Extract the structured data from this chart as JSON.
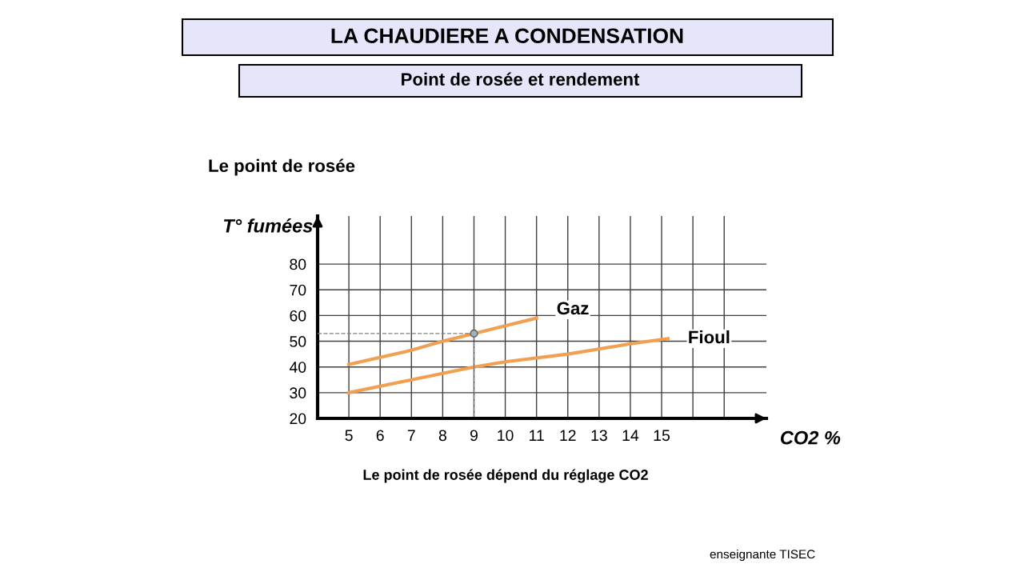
{
  "chart_data": {
    "type": "line",
    "title": "LA CHAUDIERE A CONDENSATION",
    "subtitle": "Point de rosée et rendement",
    "xlabel": "CO2 %",
    "ylabel": "T° fumées",
    "annotations": [
      "Le point de rosée",
      "Le point de rosée dépend du réglage CO2",
      "enseignante TISEC"
    ],
    "xlim": [
      4,
      18.35
    ],
    "ylim": [
      20,
      98.7
    ],
    "xticks": [
      5,
      6,
      7,
      8,
      9,
      10,
      11,
      12,
      13,
      14,
      15,
      {
        "value": 16,
        "label": null
      },
      {
        "value": 17,
        "label": null
      }
    ],
    "yticks": [
      20,
      30,
      40,
      50,
      60,
      70,
      80
    ],
    "grid": true,
    "legend": false,
    "line_style": "solid",
    "marker": "none",
    "series": [
      {
        "name": "Gaz",
        "color": "#f0a050",
        "x": [
          5,
          7,
          8,
          9,
          10,
          11
        ],
        "values": [
          41,
          46.5,
          50,
          53,
          56,
          59
        ]
      },
      {
        "name": "Fioul",
        "color": "#f0a050",
        "x": [
          5,
          7,
          8,
          9,
          10,
          12,
          13,
          14,
          15.2
        ],
        "values": [
          30,
          35,
          37.5,
          40,
          42,
          45,
          47,
          49,
          51
        ]
      },
      {
        "type": "line",
        "color": "#808080",
        "line_style": "dashed",
        "x": [
          4,
          9,
          9
        ],
        "values": [
          53,
          53,
          20
        ]
      },
      {
        "type": "scatter",
        "color": "#a0b0b8",
        "marker": "circle",
        "x": [
          9
        ],
        "values": [
          53
        ]
      }
    ]
  }
}
